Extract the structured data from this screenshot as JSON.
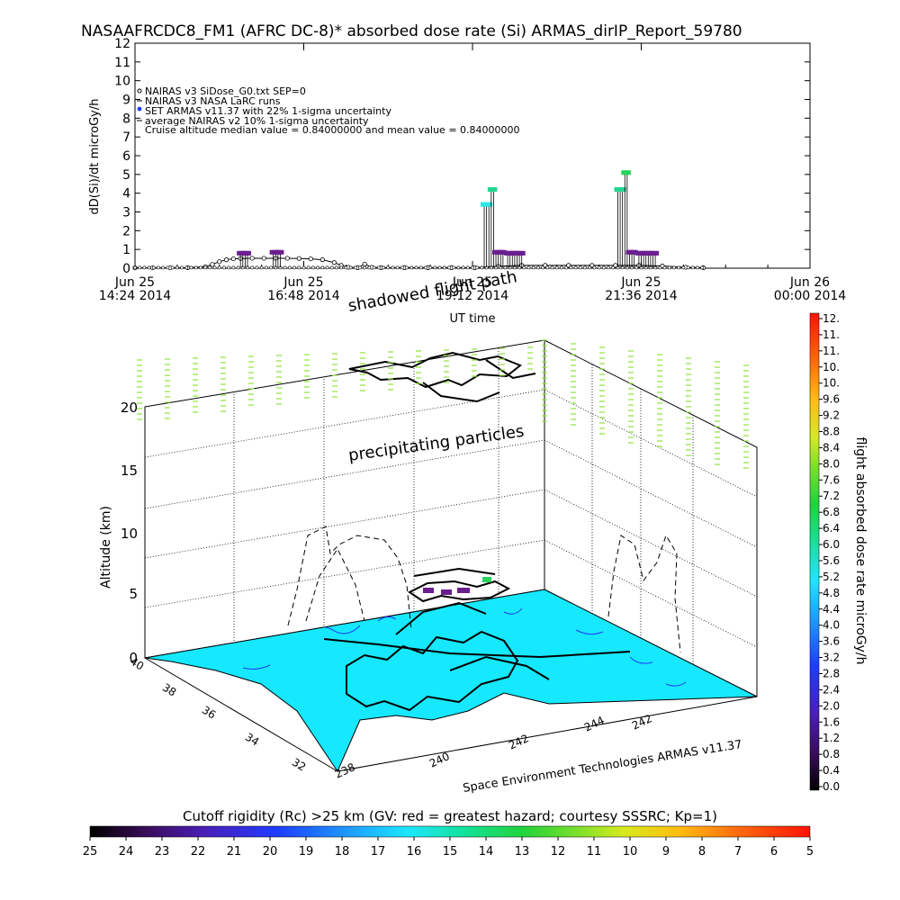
{
  "title": "NASAAFRCDC8_FM1 (AFRC DC-8)* absorbed dose rate (Si) ARMAS_dirIP_Report_59780",
  "top_chart": {
    "ylabel": "dD(Si)/dt microGy/h",
    "xlabel": "UT time",
    "x_ticks": [
      {
        "t": 0,
        "line1": "Jun 25",
        "line2": "14:24 2014"
      },
      {
        "t": 144,
        "line1": "Jun 25",
        "line2": "16:48 2014"
      },
      {
        "t": 288,
        "line1": "Jun 25",
        "line2": "19:12 2014"
      },
      {
        "t": 432,
        "line1": "Jun 25",
        "line2": "21:36 2014"
      },
      {
        "t": 576,
        "line1": "Jun 26",
        "line2": "00:00 2014"
      }
    ],
    "legend": [
      "NAIRAS v3 SiDose_G0.txt SEP=0",
      "NAIRAS v3 NASA LaRC runs",
      "SET ARMAS v11.37 with 22% 1-sigma uncertainty",
      "average NAIRAS v2 10% 1-sigma uncertainty",
      "Cruise altitude median value = 0.84000000 and mean value = 0.84000000"
    ]
  },
  "chart_data": [
    {
      "type": "scatter",
      "title": "NASAAFRCDC8_FM1 (AFRC DC-8)* absorbed dose rate (Si) ARMAS_dirIP_Report_59780",
      "xlabel": "UT time",
      "ylabel": "dD(Si)/dt microGy/h",
      "x_unit": "minutes after Jun 25 14:24 2014 UT",
      "xlim": [
        0,
        576
      ],
      "ylim": [
        0,
        12
      ],
      "yticks": [
        0,
        1,
        2,
        3,
        4,
        5,
        6,
        7,
        8,
        9,
        10,
        11,
        12
      ],
      "grid": false,
      "legend_position": "top-left",
      "series": [
        {
          "name": "NAIRAS v3 SiDose_G0.txt SEP=0",
          "color": "#000000",
          "marker": "open-circle",
          "x": [
            0,
            15,
            30,
            45,
            60,
            66,
            72,
            78,
            84,
            90,
            100,
            110,
            120,
            130,
            140,
            150,
            160,
            170,
            176,
            182,
            190,
            196,
            202,
            210,
            230,
            250,
            270,
            290,
            310,
            330,
            350,
            370,
            390,
            410,
            430,
            450,
            470,
            485
          ],
          "y": [
            0.02,
            0.02,
            0.02,
            0.03,
            0.08,
            0.2,
            0.35,
            0.45,
            0.5,
            0.52,
            0.53,
            0.53,
            0.53,
            0.53,
            0.52,
            0.5,
            0.45,
            0.3,
            0.15,
            0.05,
            0.03,
            0.22,
            0.05,
            0.03,
            0.03,
            0.03,
            0.03,
            0.03,
            0.1,
            0.15,
            0.15,
            0.15,
            0.15,
            0.15,
            0.15,
            0.12,
            0.05,
            0.03
          ]
        },
        {
          "name": "SET ARMAS v11.37 with 22% 1-sigma uncertainty",
          "color_scale": "rainbow by dose rate",
          "x": [
            90,
            92,
            94,
            96,
            118,
            120,
            122,
            124,
            298,
            300,
            302,
            304,
            306,
            308,
            310,
            312,
            314,
            318,
            320,
            322,
            324,
            326,
            328,
            330,
            412,
            414,
            416,
            418,
            420,
            422,
            424,
            426,
            430,
            432,
            434,
            436,
            438,
            440,
            442,
            444
          ],
          "y": [
            0.8,
            0.8,
            0.8,
            0.8,
            0.85,
            0.85,
            0.85,
            0.85,
            3.4,
            3.4,
            3.4,
            4.2,
            4.2,
            0.85,
            0.85,
            0.85,
            0.85,
            0.8,
            0.8,
            0.8,
            0.8,
            0.8,
            0.8,
            0.8,
            4.2,
            4.2,
            4.2,
            5.1,
            5.1,
            0.85,
            0.85,
            0.85,
            0.8,
            0.8,
            0.8,
            0.8,
            0.8,
            0.8,
            0.8,
            0.8
          ]
        }
      ]
    },
    {
      "type": "scatter",
      "subtype": "3d-flight-track",
      "zlabel": "Altitude (km)",
      "ztick_labels": [
        "0",
        "5",
        "10",
        "15",
        "20"
      ],
      "latitude_tick_labels": [
        "40",
        "38",
        "36",
        "34",
        "32"
      ],
      "longitude_tick_labels": [
        "238",
        "240",
        "242",
        "244"
      ],
      "annotations": [
        "shadowed flight path",
        "precipitating particles",
        "Space Environment Technologies ARMAS v11.37"
      ]
    }
  ],
  "colorbar_right": {
    "label": "flight absorbed dose rate microGy/h",
    "labels": [
      "12.",
      "11.",
      "11.",
      "10.",
      "10.",
      "9.6",
      "9.2",
      "8.8",
      "8.4",
      "8.0",
      "7.6",
      "7.2",
      "6.8",
      "6.4",
      "6.0",
      "5.6",
      "5.2",
      "4.8",
      "4.4",
      "4.0",
      "3.6",
      "3.2",
      "2.8",
      "2.4",
      "2.0",
      "1.6",
      "1.2",
      "0.8",
      "0.4",
      "0.0"
    ]
  },
  "colorbar_bottom": {
    "title": "Cutoff rigidity (Rc) >25 km (GV: red = greatest hazard; courtesy SSSRC; Kp=1)",
    "labels": [
      "25",
      "24",
      "23",
      "22",
      "21",
      "20",
      "19",
      "18",
      "17",
      "16",
      "15",
      "14",
      "13",
      "12",
      "11",
      "10",
      "9",
      "8",
      "7",
      "6",
      "5"
    ]
  },
  "colors": {
    "cutoff_map": "#16e8ff",
    "low_dose": "#6a1f8f",
    "mid_dose": "#2ee6e6",
    "high_dose": "#25d55a",
    "altitude_ticks": "#8fe23c"
  }
}
